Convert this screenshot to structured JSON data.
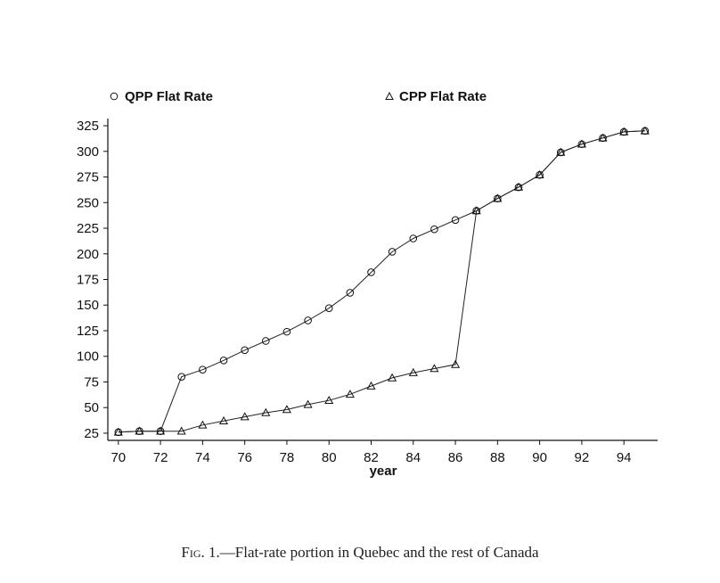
{
  "chart_data": {
    "type": "line",
    "xlabel": "year",
    "ylabel": "",
    "xlim": [
      69.5,
      95.6
    ],
    "ylim": [
      18,
      332
    ],
    "xticks": [
      70,
      72,
      74,
      76,
      78,
      80,
      82,
      84,
      86,
      88,
      90,
      92,
      94
    ],
    "yticks": [
      25,
      50,
      75,
      100,
      125,
      150,
      175,
      200,
      225,
      250,
      275,
      300,
      325
    ],
    "legend_placement": "top",
    "grid": false,
    "series": [
      {
        "name": "QPP Flat Rate",
        "marker": "circle",
        "x": [
          70,
          71,
          72,
          73,
          74,
          75,
          76,
          77,
          78,
          79,
          80,
          81,
          82,
          83,
          84,
          85,
          86,
          87,
          88,
          89,
          90,
          91,
          92,
          93,
          94,
          95
        ],
        "y": [
          26,
          27,
          27,
          80,
          87,
          96,
          106,
          115,
          124,
          135,
          147,
          162,
          182,
          202,
          215,
          224,
          233,
          242,
          254,
          265,
          277,
          299,
          307,
          313,
          319,
          320
        ]
      },
      {
        "name": "CPP Flat Rate",
        "marker": "triangle",
        "x": [
          70,
          71,
          72,
          73,
          74,
          75,
          76,
          77,
          78,
          79,
          80,
          81,
          82,
          83,
          84,
          85,
          86,
          87,
          88,
          89,
          90,
          91,
          92,
          93,
          94,
          95
        ],
        "y": [
          26,
          27,
          27,
          27,
          33,
          37,
          41,
          45,
          48,
          53,
          57,
          63,
          71,
          79,
          84,
          88,
          92,
          242,
          254,
          265,
          277,
          299,
          307,
          313,
          319,
          320
        ]
      }
    ]
  },
  "caption": {
    "prefix": "Fig",
    "text": ". 1.—Flat-rate portion in Quebec and the rest of Canada"
  }
}
